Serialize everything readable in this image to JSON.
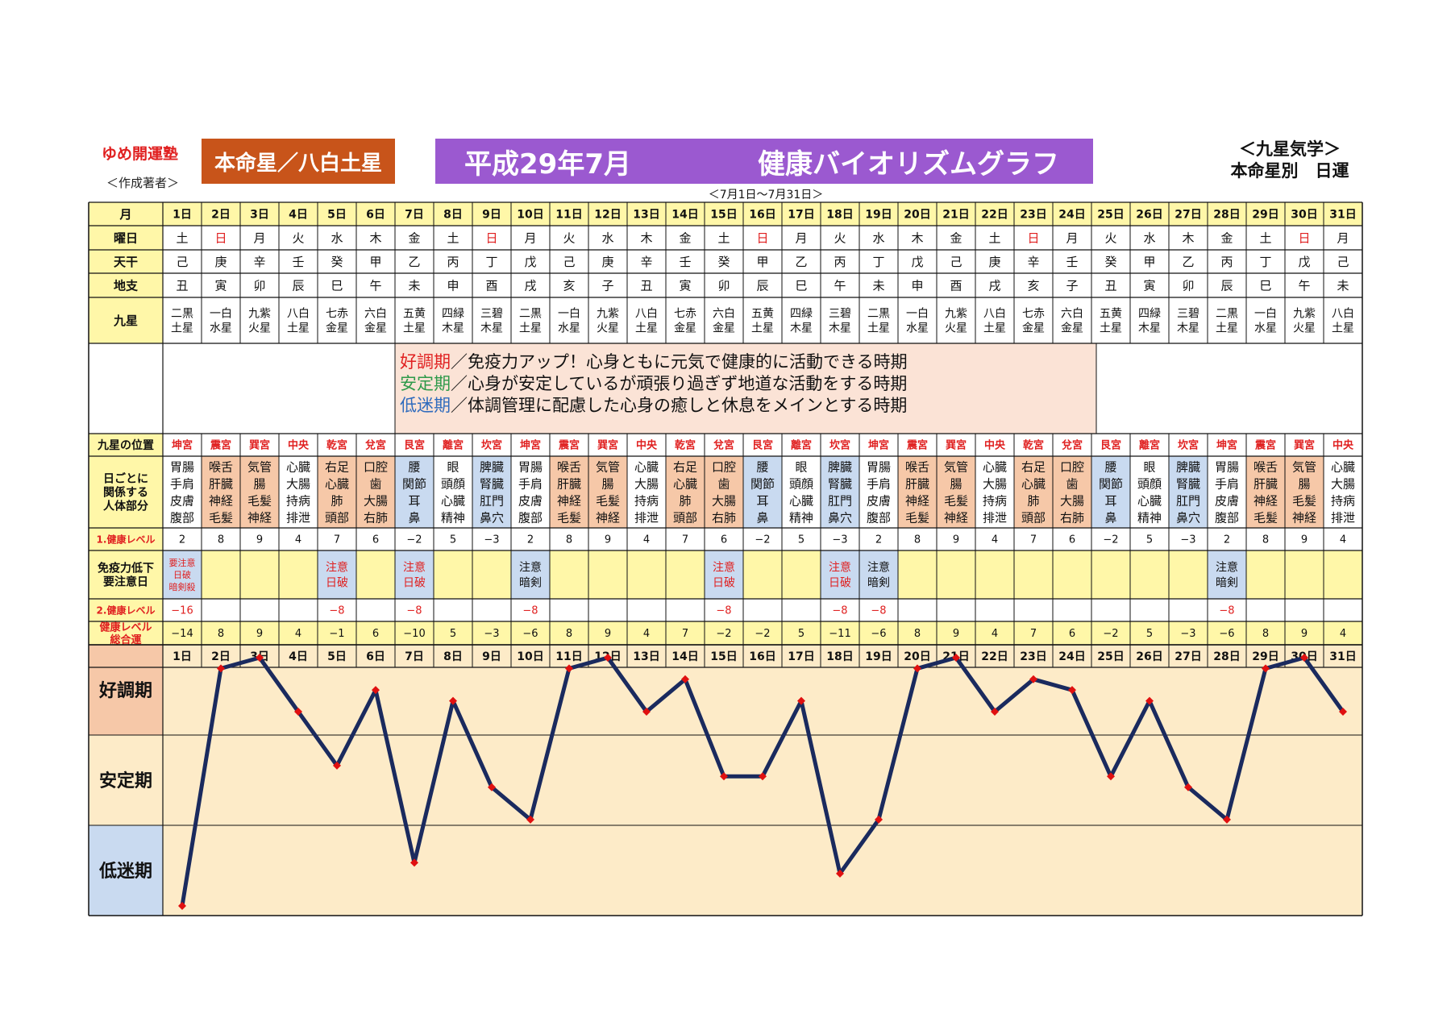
{
  "header": {
    "brand": "ゆめ開運塾",
    "author": "＜作成著者＞",
    "honmei_label": "本命星／八白土星",
    "title_era": "平成29年7月",
    "title_main": "健康バイオリズムグラフ",
    "date_range": "＜7月1日〜7月31日＞",
    "kyusei_line1": "＜九星気学＞",
    "kyusei_line2": "本命星別　日運"
  },
  "colors": {
    "header_yellow": "#fff7a8",
    "legend_bg": "#fbe3d6",
    "good_orange": "#f6c8a8",
    "low_blue": "#c9daf0",
    "chart_bg": "#fdebc8",
    "line": "#1a2a5e",
    "marker": "#e01010",
    "brand_red": "#e02020",
    "sunday_red": "#e02020",
    "honmei_orange": "#c8541a",
    "banner_purple": "#9b59d0"
  },
  "table": {
    "row_labels": {
      "month": "月",
      "weekday": "曜日",
      "tenkan": "天干",
      "chishi": "地支",
      "kyusei": "九星",
      "position": "九星の位置",
      "body_parts": "日ごとに\n関係する\n人体部分",
      "level1": "1.健康レベル",
      "caution": "免疫力低下\n要注意日",
      "level2": "2.健康レベル",
      "total": "健康レベル\n総合運"
    },
    "days": [
      "1日",
      "2日",
      "3日",
      "4日",
      "5日",
      "6日",
      "7日",
      "8日",
      "9日",
      "10日",
      "11日",
      "12日",
      "13日",
      "14日",
      "15日",
      "16日",
      "17日",
      "18日",
      "19日",
      "20日",
      "21日",
      "22日",
      "23日",
      "24日",
      "25日",
      "26日",
      "27日",
      "28日",
      "29日",
      "30日",
      "31日"
    ],
    "weekdays": [
      "土",
      "日",
      "月",
      "火",
      "水",
      "木",
      "金",
      "土",
      "日",
      "月",
      "火",
      "水",
      "木",
      "金",
      "土",
      "日",
      "月",
      "火",
      "水",
      "木",
      "金",
      "土",
      "日",
      "月",
      "火",
      "水",
      "木",
      "金",
      "土",
      "日",
      "月"
    ],
    "tenkan": [
      "己",
      "庚",
      "辛",
      "壬",
      "癸",
      "甲",
      "乙",
      "丙",
      "丁",
      "戊",
      "己",
      "庚",
      "辛",
      "壬",
      "癸",
      "甲",
      "乙",
      "丙",
      "丁",
      "戊",
      "己",
      "庚",
      "辛",
      "壬",
      "癸",
      "甲",
      "乙",
      "丙",
      "丁",
      "戊",
      "己"
    ],
    "chishi": [
      "丑",
      "寅",
      "卯",
      "辰",
      "巳",
      "午",
      "未",
      "申",
      "酉",
      "戌",
      "亥",
      "子",
      "丑",
      "寅",
      "卯",
      "辰",
      "巳",
      "午",
      "未",
      "申",
      "酉",
      "戌",
      "亥",
      "子",
      "丑",
      "寅",
      "卯",
      "辰",
      "巳",
      "午",
      "未"
    ],
    "kyusei": [
      "二黒\n土星",
      "一白\n水星",
      "九紫\n火星",
      "八白\n土星",
      "七赤\n金星",
      "六白\n金星",
      "五黄\n土星",
      "四緑\n木星",
      "三碧\n木星",
      "二黒\n土星",
      "一白\n水星",
      "九紫\n火星",
      "八白\n土星",
      "七赤\n金星",
      "六白\n金星",
      "五黄\n土星",
      "四緑\n木星",
      "三碧\n木星",
      "二黒\n土星",
      "一白\n水星",
      "九紫\n火星",
      "八白\n土星",
      "七赤\n金星",
      "六白\n金星",
      "五黄\n土星",
      "四緑\n木星",
      "三碧\n木星",
      "二黒\n土星",
      "一白\n水星",
      "九紫\n火星",
      "八白\n土星"
    ],
    "positions": [
      "坤宮",
      "震宮",
      "巽宮",
      "中央",
      "乾宮",
      "兌宮",
      "艮宮",
      "離宮",
      "坎宮",
      "坤宮",
      "震宮",
      "巽宮",
      "中央",
      "乾宮",
      "兌宮",
      "艮宮",
      "離宮",
      "坎宮",
      "坤宮",
      "震宮",
      "巽宮",
      "中央",
      "乾宮",
      "兌宮",
      "艮宮",
      "離宮",
      "坎宮",
      "坤宮",
      "震宮",
      "巽宮",
      "中央"
    ],
    "body_parts": [
      "胃腸\n手肩\n皮膚\n腹部",
      "喉舌\n肝臓\n神経\n毛髪",
      "気管\n腸\n毛髪\n神経",
      "心臓\n大腸\n持病\n排泄",
      "右足\n心臓\n肺\n頭部",
      "口腔\n歯\n大腸\n右肺",
      "腰\n関節\n耳\n鼻",
      "眼\n頭顔\n心臓\n精神",
      "脾臓\n腎臓\n肛門\n鼻穴",
      "胃腸\n手肩\n皮膚\n腹部",
      "喉舌\n肝臓\n神経\n毛髪",
      "気管\n腸\n毛髪\n神経",
      "心臓\n大腸\n持病\n排泄",
      "右足\n心臓\n肺\n頭部",
      "口腔\n歯\n大腸\n右肺",
      "腰\n関節\n耳\n鼻",
      "眼\n頭顔\n心臓\n精神",
      "脾臓\n腎臓\n肛門\n鼻穴",
      "胃腸\n手肩\n皮膚\n腹部",
      "喉舌\n肝臓\n神経\n毛髪",
      "気管\n腸\n毛髪\n神経",
      "心臓\n大腸\n持病\n排泄",
      "右足\n心臓\n肺\n頭部",
      "口腔\n歯\n大腸\n右肺",
      "腰\n関節\n耳\n鼻",
      "眼\n頭顔\n心臓\n精神",
      "脾臓\n腎臓\n肛門\n鼻穴",
      "胃腸\n手肩\n皮膚\n腹部",
      "喉舌\n肝臓\n神経\n毛髪",
      "気管\n腸\n毛髪\n神経",
      "心臓\n大腸\n持病\n排泄"
    ],
    "level1": [
      "2",
      "8",
      "9",
      "4",
      "7",
      "6",
      "−2",
      "5",
      "−3",
      "2",
      "8",
      "9",
      "4",
      "7",
      "6",
      "−2",
      "5",
      "−3",
      "2",
      "8",
      "9",
      "4",
      "7",
      "6",
      "−2",
      "5",
      "−3",
      "2",
      "8",
      "9",
      "4"
    ],
    "caution": [
      "要注意\n日破\n暗剣殺",
      "",
      "",
      "",
      "注意\n日破",
      "",
      "注意\n日破",
      "",
      "",
      "注意\n暗剣",
      "",
      "",
      "",
      "",
      "注意\n日破",
      "",
      "",
      "注意\n日破",
      "注意\n暗剣",
      "",
      "",
      "",
      "",
      "",
      "",
      "",
      "",
      "注意\n暗剣",
      "",
      "",
      ""
    ],
    "level2": [
      "−16",
      "",
      "",
      "",
      "−8",
      "",
      "−8",
      "",
      "",
      "−8",
      "",
      "",
      "",
      "",
      "−8",
      "",
      "",
      "−8",
      "−8",
      "",
      "",
      "",
      "",
      "",
      "",
      "",
      "",
      "−8",
      "",
      "",
      ""
    ],
    "total": [
      "−14",
      "8",
      "9",
      "4",
      "−1",
      "6",
      "−10",
      "5",
      "−3",
      "−6",
      "8",
      "9",
      "4",
      "7",
      "−2",
      "−2",
      "5",
      "−11",
      "−6",
      "8",
      "9",
      "4",
      "7",
      "6",
      "−2",
      "5",
      "−3",
      "−6",
      "8",
      "9",
      "4"
    ]
  },
  "legend": {
    "good_term": "好調期",
    "good_text": "／免疫力アップ！心身ともに元気で健康的に活動できる時期",
    "stable_term": "安定期",
    "stable_text": "／心身が安定しているが頑張り過ぎず地道な活動をする時期",
    "low_term": "低迷期",
    "low_text": "／体調管理に配慮した心身の癒しと休息をメインとする時期"
  },
  "chart_data": {
    "type": "line",
    "categories": [
      "1日",
      "2日",
      "3日",
      "4日",
      "5日",
      "6日",
      "7日",
      "8日",
      "9日",
      "10日",
      "11日",
      "12日",
      "13日",
      "14日",
      "15日",
      "16日",
      "17日",
      "18日",
      "19日",
      "20日",
      "21日",
      "22日",
      "23日",
      "24日",
      "25日",
      "26日",
      "27日",
      "28日",
      "29日",
      "30日",
      "31日"
    ],
    "series": [
      {
        "values": [
          -14,
          8,
          9,
          4,
          -1,
          6,
          -10,
          5,
          -3,
          -6,
          8,
          9,
          4,
          7,
          -2,
          -2,
          5,
          -11,
          -6,
          8,
          9,
          4,
          7,
          6,
          -2,
          5,
          -3,
          -6,
          8,
          9,
          4
        ]
      }
    ],
    "bands": [
      "好調期",
      "安定期",
      "低迷期"
    ],
    "band_colors": [
      "#f6c8a8",
      "#fdebc8",
      "#c9daf0"
    ],
    "ylim": [
      -14,
      9
    ],
    "grid": "horizontal band lines",
    "line_color": "#1a2a5e",
    "marker_color": "#e01010"
  }
}
